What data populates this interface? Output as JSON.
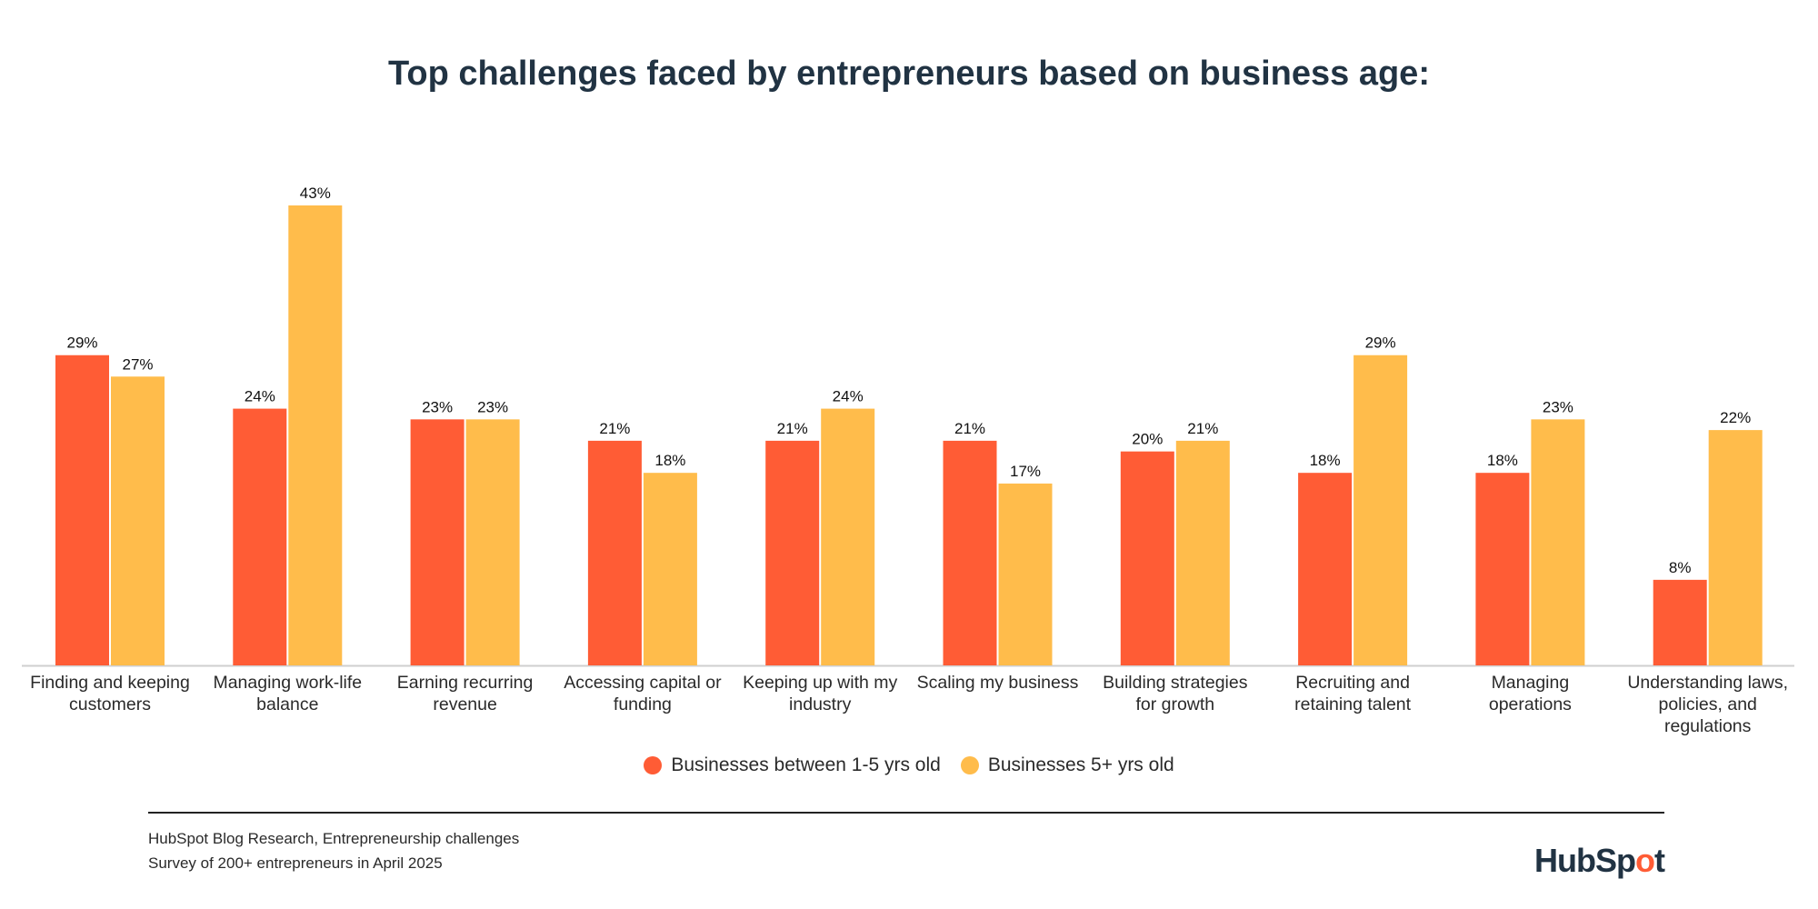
{
  "chart_data": {
    "type": "bar",
    "title": "Top challenges faced by entrepreneurs based on business age:",
    "categories": [
      [
        "Finding and keeping",
        "customers"
      ],
      [
        "Managing work-life",
        "balance"
      ],
      [
        "Earning recurring",
        "revenue"
      ],
      [
        "Accessing capital or",
        "funding"
      ],
      [
        "Keeping up with my",
        "industry"
      ],
      [
        "Scaling my business"
      ],
      [
        "Building strategies",
        "for growth"
      ],
      [
        "Recruiting and",
        "retaining talent"
      ],
      [
        "Managing",
        "operations"
      ],
      [
        "Understanding laws,",
        "policies, and",
        "regulations"
      ]
    ],
    "series": [
      {
        "name": "Businesses between 1-5 yrs old",
        "color": "#FF5C35",
        "values": [
          29,
          24,
          23,
          21,
          21,
          21,
          20,
          18,
          18,
          8
        ]
      },
      {
        "name": "Businesses 5+ yrs old",
        "color": "#FFBC4B",
        "values": [
          27,
          43,
          23,
          18,
          24,
          17,
          21,
          29,
          23,
          22
        ]
      }
    ],
    "value_suffix": "%",
    "ylim": [
      0,
      43
    ],
    "grid": false,
    "legend": "bottom"
  },
  "footer": {
    "source_line1": "HubSpot Blog Research, Entrepreneurship challenges",
    "source_line2": "Survey of 200+ entrepreneurs in April 2025",
    "logo_text": "HubSpot"
  }
}
